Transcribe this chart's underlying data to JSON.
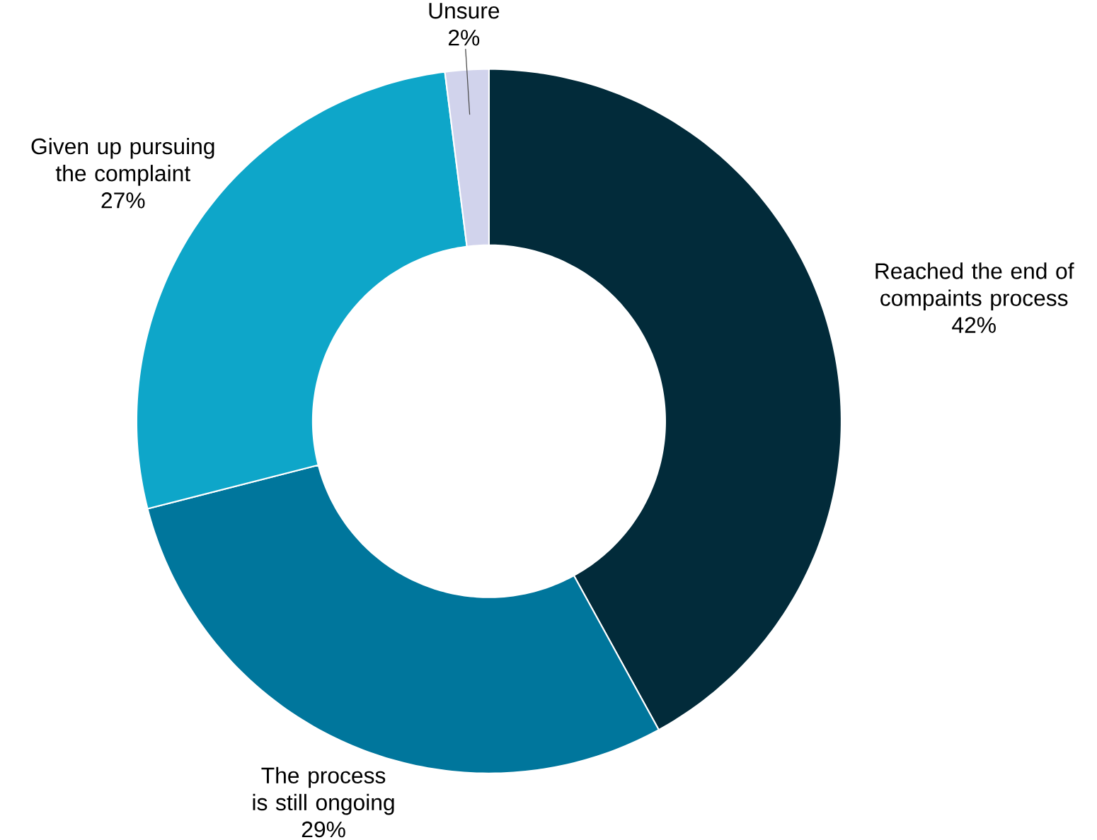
{
  "chart_data": {
    "type": "donut",
    "categories": [
      "Reached the end of compaints process",
      "The process is still ongoing",
      "Given up pursuing the complaint",
      "Unsure"
    ],
    "values": [
      42,
      29,
      27,
      2
    ],
    "value_labels": [
      "42%",
      "29%",
      "27%",
      "2%"
    ],
    "colors": [
      "#022b3a",
      "#00769c",
      "#0ea6c9",
      "#d1d3ec"
    ]
  }
}
